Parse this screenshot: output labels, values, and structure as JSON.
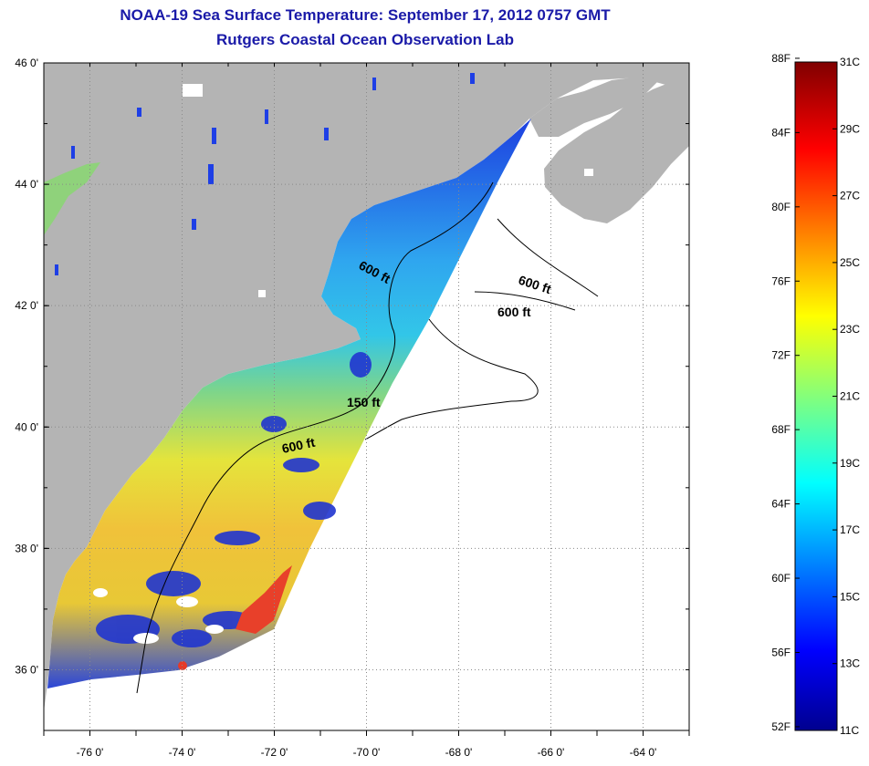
{
  "title": "NOAA-19 Sea Surface Temperature:  September 17, 2012 0757 GMT",
  "subtitle": "Rutgers Coastal Ocean Observation Lab",
  "map": {
    "lon_range": [
      -77,
      -63
    ],
    "lat_range": [
      35,
      46
    ],
    "lat_ticks": [
      {
        "value": 46,
        "label": "46 0'"
      },
      {
        "value": 44,
        "label": "44 0'"
      },
      {
        "value": 42,
        "label": "42 0'"
      },
      {
        "value": 40,
        "label": "40 0'"
      },
      {
        "value": 38,
        "label": "38 0'"
      },
      {
        "value": 36,
        "label": "36 0'"
      }
    ],
    "lon_ticks": [
      {
        "value": -76,
        "label": "-76 0'"
      },
      {
        "value": -74,
        "label": "-74 0'"
      },
      {
        "value": -72,
        "label": "-72 0'"
      },
      {
        "value": -70,
        "label": "-70 0'"
      },
      {
        "value": -68,
        "label": "-68 0'"
      },
      {
        "value": -66,
        "label": "-66 0'"
      },
      {
        "value": -64,
        "label": "-64 0'"
      }
    ],
    "grid": "dotted",
    "land_color": "#b4b4b4",
    "no_data_color": "#ffffff",
    "contour_labels": [
      "600 ft",
      "600 ft",
      "600 ft",
      "150 ft",
      "600 ft"
    ]
  },
  "colorbar": {
    "fahrenheit_labels": [
      "88F",
      "84F",
      "80F",
      "76F",
      "72F",
      "68F",
      "64F",
      "60F",
      "56F",
      "52F"
    ],
    "celsius_labels": [
      "31C",
      "29C",
      "27C",
      "25C",
      "23C",
      "21C",
      "19C",
      "17C",
      "15C",
      "13C",
      "11C"
    ],
    "range_c": [
      11,
      31
    ]
  }
}
